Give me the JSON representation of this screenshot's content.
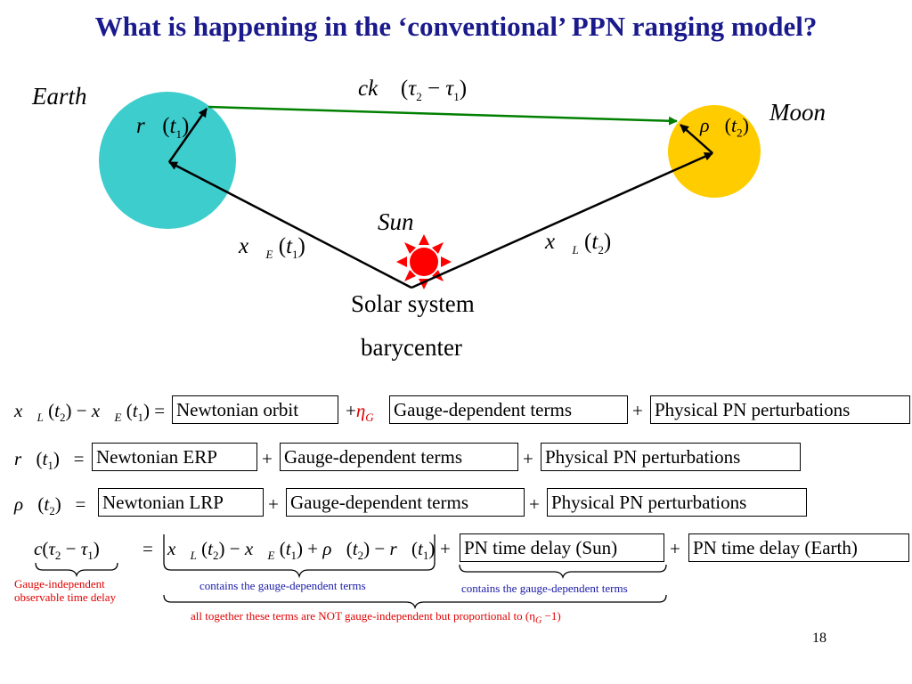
{
  "slide": {
    "title": "What is happening in the ‘conventional’ PPN ranging model?",
    "page_number": "18"
  },
  "diagram": {
    "earth_label": "Earth",
    "moon_label": "Moon",
    "sun_label": "Sun",
    "barycenter_line1": "Solar system",
    "barycenter_line2": "barycenter",
    "colors": {
      "earth": "#3ecdcd",
      "moon": "#ffcc00",
      "sun": "#ff0000",
      "signal": "#008000"
    }
  },
  "equations": {
    "row1": {
      "lhs": "x_L(t_2) − x_E(t_1) =",
      "box1": "Newtonian orbit",
      "plus_eta": "+η",
      "eta_sub": "G",
      "box2": "Gauge-dependent terms",
      "plus": "+",
      "box3": "Physical PN perturbations"
    },
    "row2": {
      "lhs": "r(t_1) =",
      "box1": "Newtonian ERP",
      "plus1": "+",
      "box2": "Gauge-dependent terms",
      "plus2": "+",
      "box3": "Physical PN perturbations"
    },
    "row3": {
      "lhs": "ρ(t_2) =",
      "box1": "Newtonian LRP",
      "plus1": "+",
      "box2": "Gauge-dependent terms",
      "plus2": "+",
      "box3": "Physical PN perturbations"
    },
    "row4": {
      "plus1": "+",
      "box1": "PN time delay (Sun)",
      "plus2": "+",
      "box2": "PN time delay (Earth)"
    }
  },
  "notes": {
    "gauge_independent_line1": "Gauge-independent",
    "gauge_independent_line2": "observable time delay",
    "contains1": "contains the gauge-dependent terms",
    "contains2": "contains the gauge-dependent terms",
    "all_together": "all together these terms are NOT gauge-independent but proportional to (η",
    "all_together_sub": "G",
    "all_together_end": " −1)"
  }
}
